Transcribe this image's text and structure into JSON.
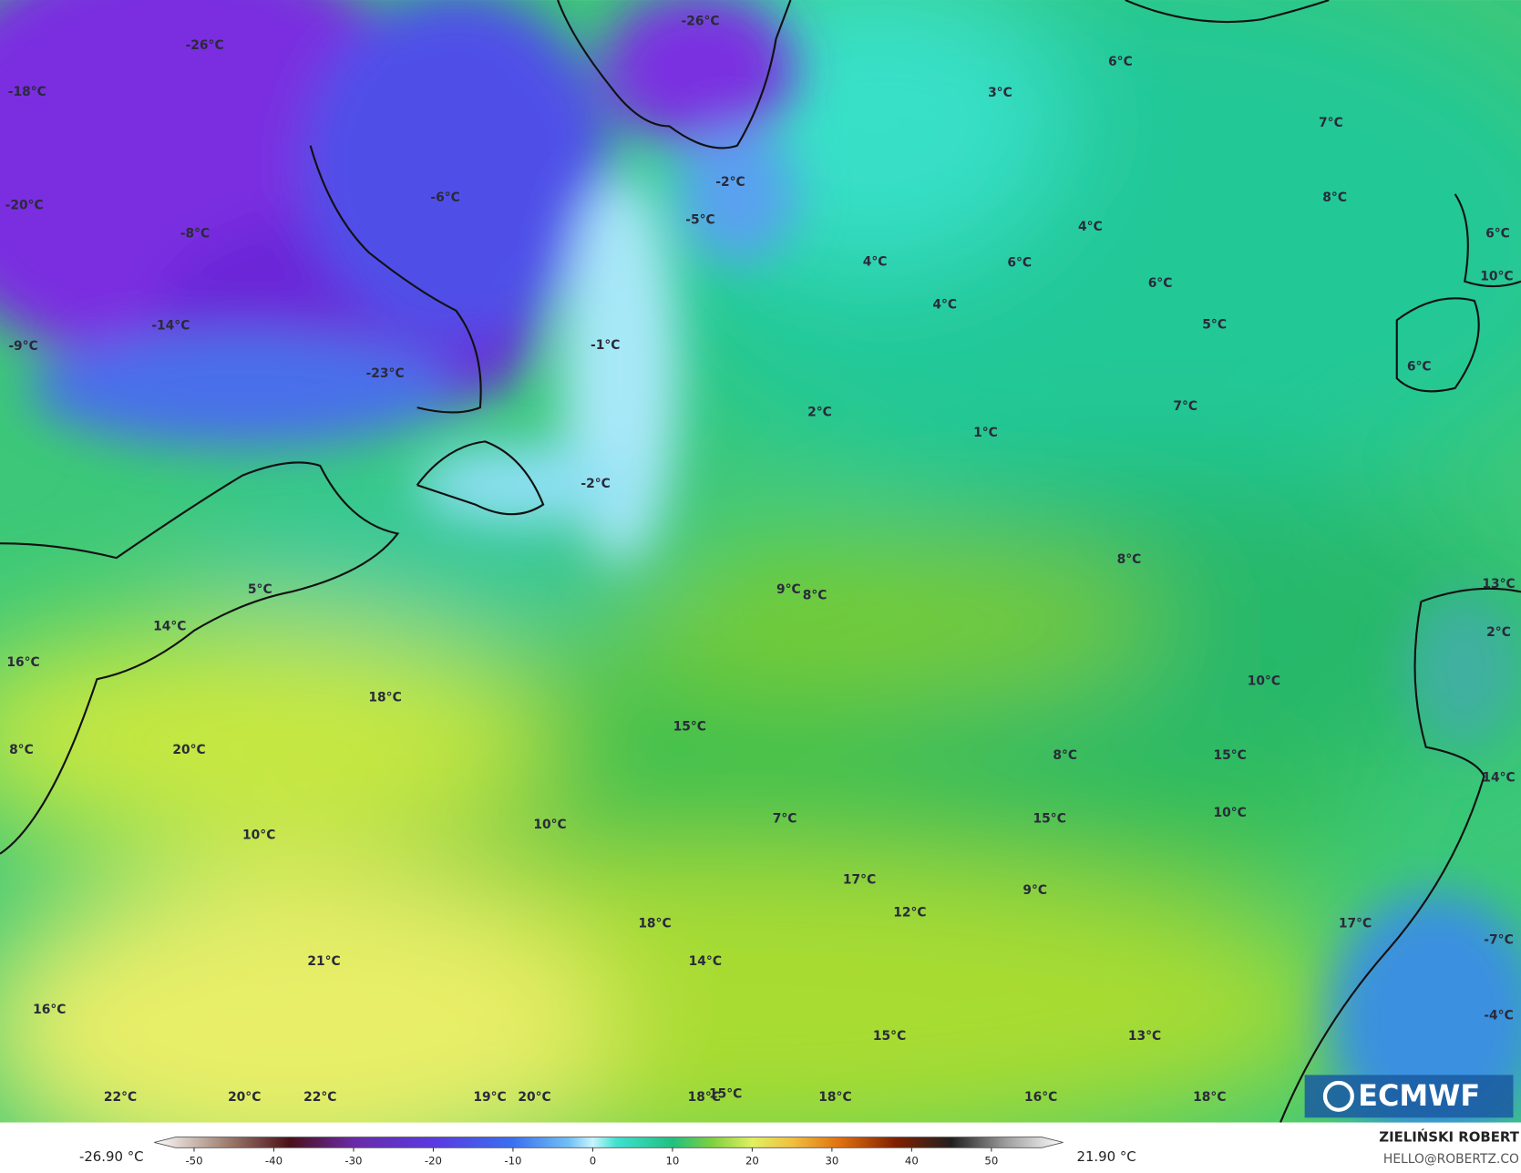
{
  "map_labels": [
    "-26°C",
    "-26°C",
    "-18°C",
    "-20°C",
    "-8°C",
    "-6°C",
    "-14°C",
    "-9°C",
    "-23°C",
    "-2°C",
    "-5°C",
    "-1°C",
    "-2°C",
    "3°C",
    "6°C",
    "7°C",
    "8°C",
    "4°C",
    "4°C",
    "6°C",
    "6°C",
    "4°C",
    "5°C",
    "6°C",
    "10°C",
    "6°C",
    "7°C",
    "2°C",
    "1°C",
    "8°C",
    "9°C",
    "8°C",
    "13°C",
    "2°C",
    "5°C",
    "14°C",
    "16°C",
    "18°C",
    "10°C",
    "15°C",
    "20°C",
    "8°C",
    "8°C",
    "15°C",
    "14°C",
    "10°C",
    "10°C",
    "7°C",
    "15°C",
    "10°C",
    "17°C",
    "9°C",
    "12°C",
    "18°C",
    "17°C",
    "-7°C",
    "21°C",
    "14°C",
    "16°C",
    "-4°C",
    "15°C",
    "13°C",
    "22°C",
    "20°C",
    "22°C",
    "19°C",
    "20°C",
    "18°C",
    "15°C",
    "18°C",
    "16°C",
    "18°C"
  ],
  "colorbar": {
    "min_label": "-26.90 °C",
    "max_label": "21.90 °C",
    "lim": [
      -55,
      59
    ],
    "ticks": [
      -50,
      -40,
      -30,
      -20,
      -10,
      0,
      10,
      20,
      30,
      40,
      50
    ],
    "stops": [
      {
        "value": -55,
        "color": "#ffffff"
      },
      {
        "value": -46,
        "color": "#a08070"
      },
      {
        "value": -38,
        "color": "#4a1018"
      },
      {
        "value": -30,
        "color": "#6a2aa8"
      },
      {
        "value": -20,
        "color": "#5a3ae0"
      },
      {
        "value": -10,
        "color": "#3a70f0"
      },
      {
        "value": -3,
        "color": "#70c0f4"
      },
      {
        "value": 0,
        "color": "#c8f4ff"
      },
      {
        "value": 3,
        "color": "#40e0d0"
      },
      {
        "value": 10,
        "color": "#20c080"
      },
      {
        "value": 15,
        "color": "#80d040"
      },
      {
        "value": 20,
        "color": "#e0f060"
      },
      {
        "value": 25,
        "color": "#f0c040"
      },
      {
        "value": 31,
        "color": "#e07010"
      },
      {
        "value": 38,
        "color": "#802000"
      },
      {
        "value": 45,
        "color": "#202020"
      },
      {
        "value": 52,
        "color": "#a0a0a0"
      },
      {
        "value": 59,
        "color": "#ffffff"
      }
    ]
  },
  "credit": {
    "name": "ZIELIŃSKI ROBERT",
    "contact": "HELLO@ROBERTZ.CO"
  },
  "logo": "ECMWF"
}
